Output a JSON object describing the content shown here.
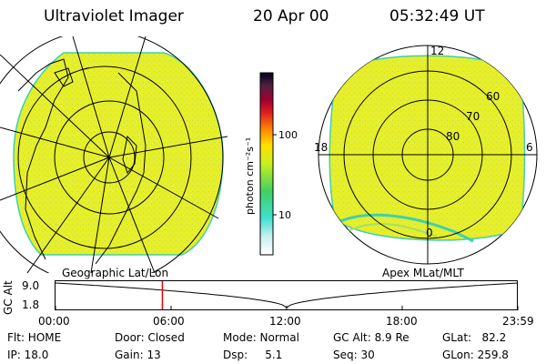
{
  "header": {
    "title": "Ultraviolet Imager",
    "date": "20 Apr 00",
    "time": "05:32:49 UT"
  },
  "colorbar": {
    "label": "photon cm⁻²s⁻¹",
    "ticks": [
      "100",
      "10"
    ],
    "scale": "log"
  },
  "polar_plot": {
    "mlt_labels": [
      "12",
      "18",
      "6",
      "0"
    ],
    "lat_labels": [
      "60",
      "70",
      "80"
    ]
  },
  "projection_labels": {
    "left": "Geographic Lat/Lon",
    "right": "Apex MLat/MLT"
  },
  "altitude_plot": {
    "ylabel": "GC Alt",
    "yticks": [
      "9.0",
      "1.8"
    ],
    "xticks": [
      "00:00",
      "06:00",
      "12:00",
      "18:00",
      "23:59"
    ],
    "current_time_hours": 5.55,
    "marker_color": "#e00000"
  },
  "info": {
    "flt": "Flt: HOME",
    "ip": "IP: 18.0",
    "door": "Door: Closed",
    "gain": "Gain: 13",
    "mode": "Mode: Normal",
    "dsp": "Dsp:     5.1",
    "gc_alt": "GC Alt: 8.9 Re",
    "seq": "Seq: 30",
    "glat": "GLat:   82.2",
    "glon": "GLon: 259.8"
  },
  "colors": {
    "image_fill": "#e6ef2a",
    "speckle": "#b8d860",
    "edge": "#3fd0b0"
  }
}
